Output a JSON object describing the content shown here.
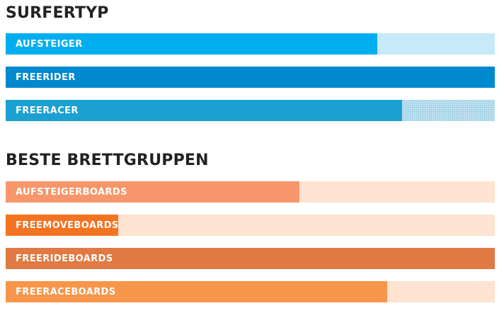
{
  "chart_data": [
    {
      "type": "bar",
      "orientation": "horizontal",
      "title": "SURFERTYP",
      "scale_max": 100,
      "bars": [
        {
          "label": "AUFSTEIGER",
          "value": 76,
          "fill_color": "#00aeef",
          "track_color": "#c7e9f9"
        },
        {
          "label": "FREERIDER",
          "value": 100,
          "fill_color": "#0089cf",
          "track_color": "#c7e9f9"
        },
        {
          "label": "FREERACER",
          "value": 81,
          "fill_color": "#1aa1d2",
          "track_color": "#c4e4f3",
          "track_pattern": "dotted"
        }
      ]
    },
    {
      "type": "bar",
      "orientation": "horizontal",
      "title": "BESTE BRETTGRUPPEN",
      "scale_max": 100,
      "bars": [
        {
          "label": "AUFSTEIGERBOARDS",
          "value": 60,
          "fill_color": "#f7966b",
          "track_color": "#fde3d0"
        },
        {
          "label": "FREEMOVEBOARDS",
          "value": 23,
          "fill_color": "#f47321",
          "track_color": "#fde3d0"
        },
        {
          "label": "FREERIDEBOARDS",
          "value": 100,
          "fill_color": "#e07a42",
          "track_color": "#fde3d0"
        },
        {
          "label": "FREERACEBOARDS",
          "value": 78,
          "fill_color": "#f7964a",
          "track_color": "#fde3d0"
        }
      ]
    }
  ]
}
